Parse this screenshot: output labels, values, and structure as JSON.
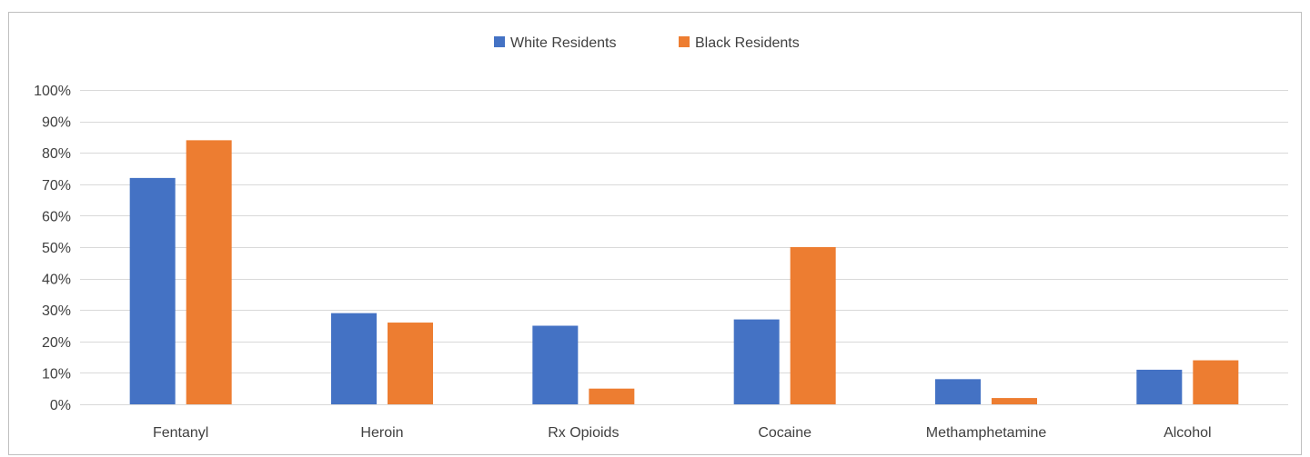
{
  "header_fragment": "",
  "colors": {
    "white_residents": "#4472C4",
    "black_residents": "#ED7D31",
    "grid": "#d9d9d9",
    "text": "#404040",
    "frame": "#bfbfbf"
  },
  "chart_data": {
    "type": "bar",
    "title": "",
    "xlabel": "",
    "ylabel": "",
    "categories": [
      "Fentanyl",
      "Heroin",
      "Rx Opioids",
      "Cocaine",
      "Methamphetamine",
      "Alcohol"
    ],
    "series": [
      {
        "name": "White Residents",
        "color": "#4472C4",
        "values": [
          72,
          29,
          25,
          27,
          8,
          11
        ]
      },
      {
        "name": "Black Residents",
        "color": "#ED7D31",
        "values": [
          84,
          26,
          5,
          50,
          2,
          14
        ]
      }
    ],
    "ylim": [
      0,
      100
    ],
    "yticks": [
      0,
      10,
      20,
      30,
      40,
      50,
      60,
      70,
      80,
      90,
      100
    ],
    "ytick_labels": [
      "0%",
      "10%",
      "20%",
      "30%",
      "40%",
      "50%",
      "60%",
      "70%",
      "80%",
      "90%",
      "100%"
    ],
    "grid": true,
    "legend_position": "top-center"
  }
}
